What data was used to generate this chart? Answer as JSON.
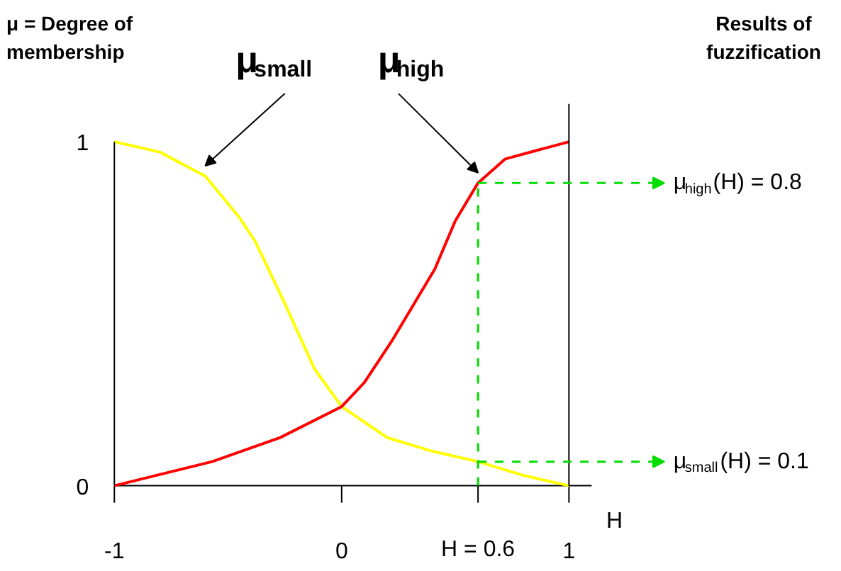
{
  "chart_data": {
    "type": "line",
    "ylabel": "μ = Degree of membership",
    "xlabel": "H",
    "xlim": [
      -1.5,
      2.2
    ],
    "ylim": [
      -0.25,
      1.41
    ],
    "xticks": [
      -1,
      0,
      {
        "value": 0.6,
        "label": "H = 0.6"
      },
      1
    ],
    "yticks": [
      0,
      1
    ],
    "series": [
      {
        "name": "μ$_{small}$",
        "color": "#ffff00",
        "x": [
          -1,
          -0.8,
          -0.6,
          -0.45,
          -0.38,
          -0.25,
          -0.12,
          0,
          0.2,
          0.4,
          0.6,
          0.8,
          1
        ],
        "values": [
          1,
          0.97,
          0.9,
          0.78,
          0.71,
          0.53,
          0.34,
          0.23,
          0.14,
          0.1,
          0.07,
          0.03,
          0
        ]
      },
      {
        "name": "μ$_{high}$",
        "color": "#ff0000",
        "x": [
          -1,
          -0.57,
          -0.27,
          0,
          0.1,
          0.22,
          0.41,
          0.5,
          0.6,
          0.72,
          1
        ],
        "values": [
          0,
          0.07,
          0.14,
          0.23,
          0.3,
          0.42,
          0.63,
          0.77,
          0.88,
          0.95,
          1
        ]
      }
    ],
    "ref_lines": [
      {
        "axis": "x",
        "value": -1,
        "color": "#000000",
        "line_style": "solid"
      },
      {
        "axis": "x",
        "value": 1,
        "color": "#000000",
        "line_style": "solid"
      },
      {
        "axis": "x",
        "value": 0.6,
        "color": "#00dd00",
        "line_style": "dashed"
      }
    ],
    "annotations": [
      "Results of fuzzification",
      {
        "text": "μ$_{high}$(H) = 0.8",
        "x": 0.6,
        "y": 0.88
      },
      {
        "text": "μ$_{small}$(H) = 0.1",
        "x": 0.6,
        "y": 0.07
      }
    ],
    "grid": false,
    "legend": false,
    "marker": "none",
    "line_style": "solid"
  }
}
